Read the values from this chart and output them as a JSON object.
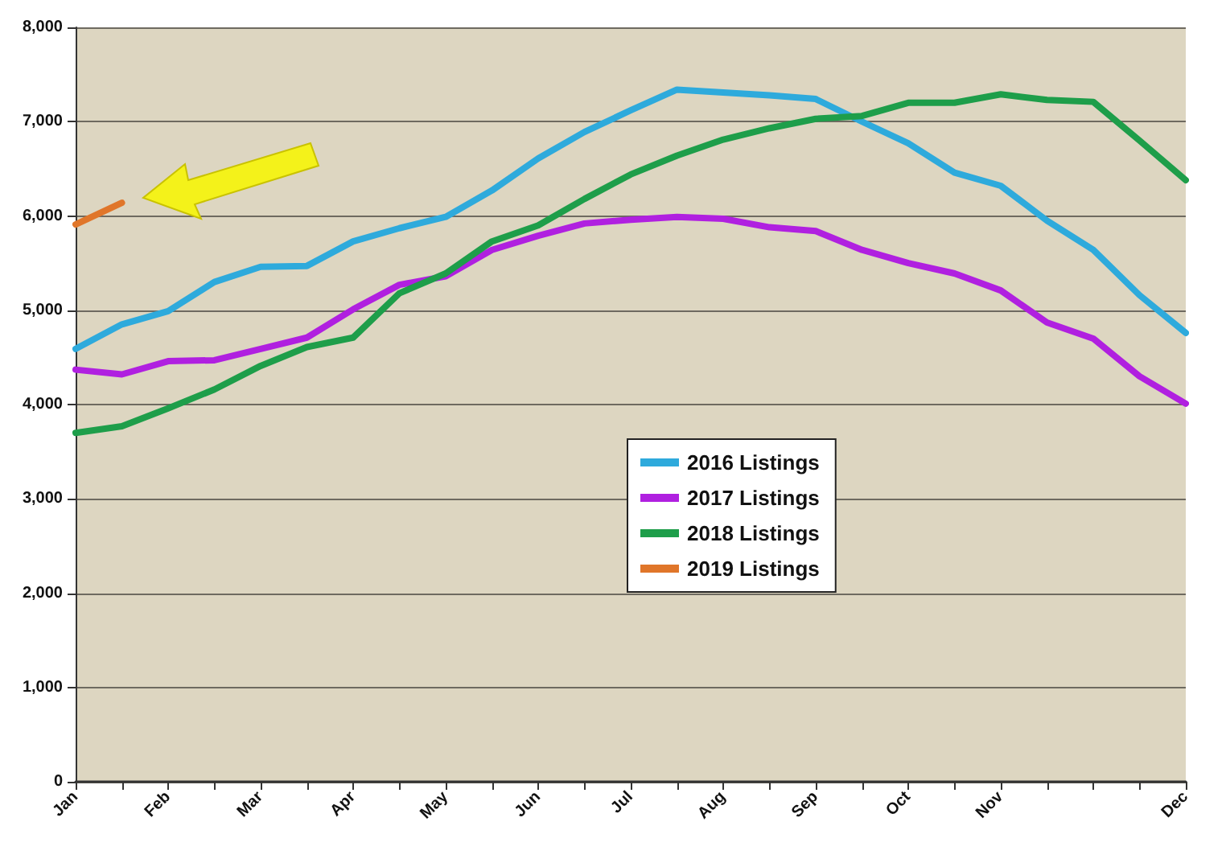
{
  "chart_data": {
    "type": "line",
    "categories": [
      "Jan",
      null,
      "Feb",
      null,
      "Mar",
      null,
      "Apr",
      null,
      "May",
      null,
      "Jun",
      null,
      "Jul",
      null,
      "Aug",
      null,
      "Sep",
      null,
      "Oct",
      null,
      "Nov",
      null,
      null,
      null,
      "Dec"
    ],
    "series": [
      {
        "name": "2016 Listings",
        "color": "#2eaadc",
        "values": [
          4590,
          4850,
          4990,
          5300,
          5460,
          5470,
          5730,
          5870,
          5990,
          6270,
          6610,
          6890,
          7120,
          7340,
          7310,
          7280,
          7240,
          7000,
          6770,
          6460,
          6320,
          5950,
          5640,
          5160,
          4760
        ]
      },
      {
        "name": "2017 Listings",
        "color": "#b020e0",
        "values": [
          4370,
          4320,
          4460,
          4470,
          4590,
          4710,
          5010,
          5270,
          5360,
          5640,
          5790,
          5920,
          5960,
          5990,
          5970,
          5880,
          5840,
          5640,
          5500,
          5390,
          5210,
          4870,
          4700,
          4300,
          4010
        ]
      },
      {
        "name": "2018 Listings",
        "color": "#1e9e4a",
        "values": [
          3700,
          3770,
          3960,
          4160,
          4410,
          4610,
          4710,
          5180,
          5390,
          5730,
          5900,
          6180,
          6440,
          6640,
          6810,
          6930,
          7030,
          7060,
          7200,
          7200,
          7290,
          7230,
          7210,
          6800,
          6380
        ]
      },
      {
        "name": "2019 Listings",
        "color": "#e0762a",
        "values": [
          5910,
          6140,
          null,
          null,
          null,
          null,
          null,
          null,
          null,
          null,
          null,
          null,
          null,
          null,
          null,
          null,
          null,
          null,
          null,
          null,
          null,
          null,
          null,
          null,
          null
        ]
      }
    ],
    "ylim": [
      0,
      8000
    ],
    "yticks": [
      0,
      {
        "value": 1000,
        "label": "1,000"
      },
      {
        "value": 2000,
        "label": "2,000"
      },
      {
        "value": 3000,
        "label": "3,000"
      },
      {
        "value": 4000,
        "label": "4,000"
      },
      {
        "value": 5000,
        "label": "5,000"
      },
      {
        "value": 6000,
        "label": "6,000"
      },
      {
        "value": 7000,
        "label": "7,000"
      },
      {
        "value": 8000,
        "label": "8,000"
      }
    ],
    "grid": "y",
    "legend": "center",
    "marker": "none",
    "line_style": "solid"
  }
}
